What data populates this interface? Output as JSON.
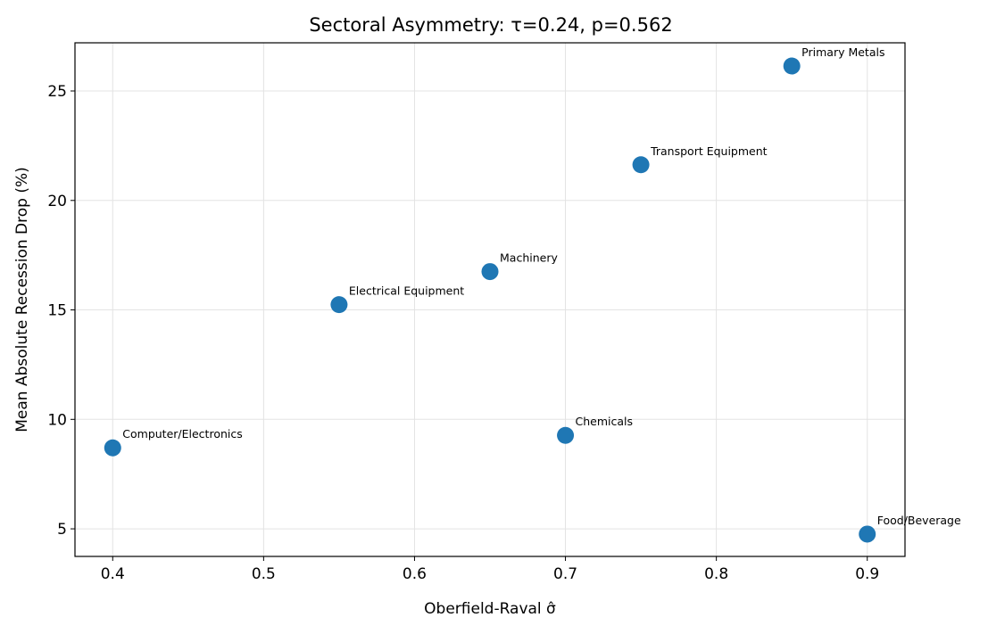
{
  "chart_data": {
    "type": "scatter",
    "title": "Sectoral Asymmetry: τ=0.24, p=0.562",
    "xlabel": "Oberfield-Raval σ̂",
    "ylabel": "Mean Absolute Recession Drop (%)",
    "xlim": [
      0.375,
      0.925
    ],
    "ylim": [
      3.74,
      27.2
    ],
    "xticks": [
      0.4,
      0.5,
      0.6,
      0.7,
      0.8,
      0.9
    ],
    "xtick_labels": [
      "0.4",
      "0.5",
      "0.6",
      "0.7",
      "0.8",
      "0.9"
    ],
    "yticks": [
      5,
      10,
      15,
      20,
      25
    ],
    "ytick_labels": [
      "5",
      "10",
      "15",
      "20",
      "25"
    ],
    "grid": true,
    "marker_color": "#1f77b4",
    "points": [
      {
        "label": "Computer/Electronics",
        "x": 0.4,
        "y": 8.7
      },
      {
        "label": "Electrical Equipment",
        "x": 0.55,
        "y": 15.24
      },
      {
        "label": "Machinery",
        "x": 0.65,
        "y": 16.75
      },
      {
        "label": "Chemicals",
        "x": 0.7,
        "y": 9.27
      },
      {
        "label": "Transport Equipment",
        "x": 0.75,
        "y": 21.63
      },
      {
        "label": "Primary Metals",
        "x": 0.85,
        "y": 26.14
      },
      {
        "label": "Food/Beverage",
        "x": 0.9,
        "y": 4.76
      }
    ]
  }
}
